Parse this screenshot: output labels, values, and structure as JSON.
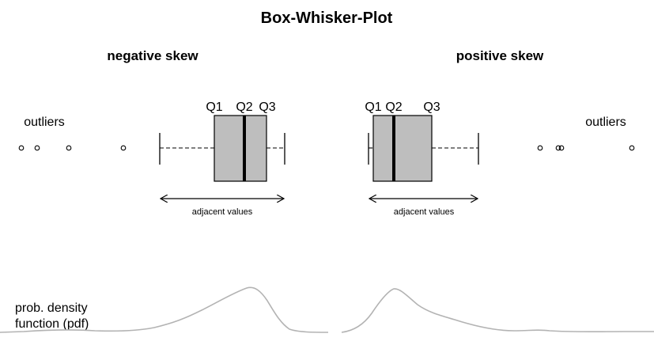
{
  "title": "Box-Whisker-Plot",
  "colors": {
    "box_fill": "#bebebe",
    "stroke": "#000000",
    "density": "#b3b3b3"
  },
  "panels": [
    {
      "heading": "negative skew",
      "outliers_label": "outliers",
      "q1_label": "Q1",
      "q2_label": "Q2",
      "q3_label": "Q3",
      "adjacent_label": "adjacent values"
    },
    {
      "heading": "positive skew",
      "outliers_label": "outliers",
      "q1_label": "Q1",
      "q2_label": "Q2",
      "q3_label": "Q3",
      "adjacent_label": "adjacent values"
    }
  ],
  "pdf_label_line1": "prob. density",
  "pdf_label_line2": "function (pdf)"
}
